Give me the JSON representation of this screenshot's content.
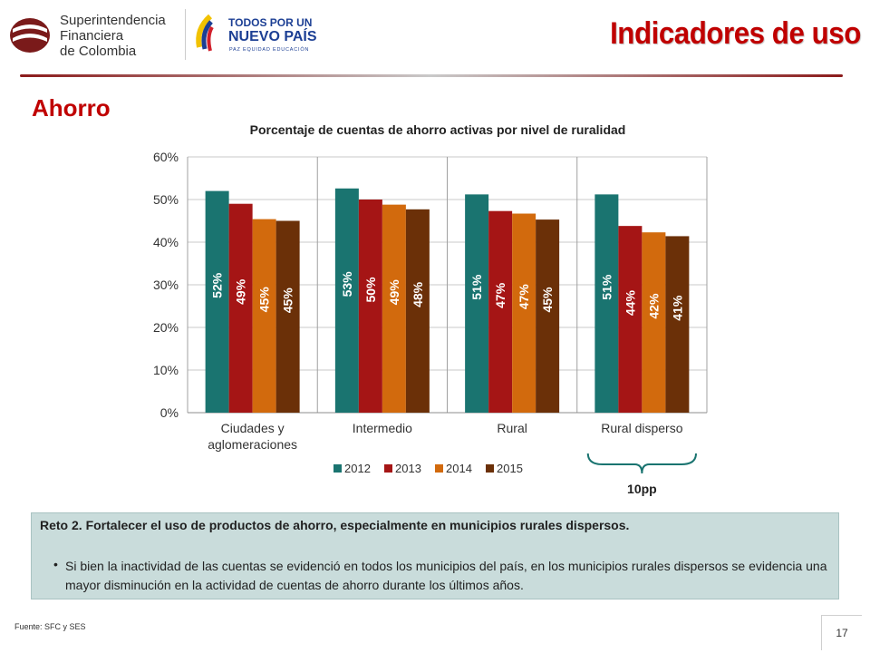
{
  "header": {
    "org_name": [
      "Superintendencia",
      "Financiera",
      "de Colombia"
    ],
    "gov_logo": [
      "TODOS POR UN",
      "NUEVO PAÍS",
      "PAZ  EQUIDAD  EDUCACIÓN"
    ],
    "title": "Indicadores de uso"
  },
  "section_title": "Ahorro",
  "chart_data": {
    "type": "bar",
    "title": "Porcentaje de cuentas de ahorro activas por nivel de ruralidad",
    "categories": [
      "Ciudades y aglomeraciones",
      "Intermedio",
      "Rural",
      "Rural disperso"
    ],
    "category_lines": [
      [
        "Ciudades y",
        "aglomeraciones"
      ],
      [
        "Intermedio"
      ],
      [
        "Rural"
      ],
      [
        "Rural disperso"
      ]
    ],
    "series": [
      {
        "name": "2012",
        "color": "#1a7470",
        "values": [
          52,
          52.6,
          51.2,
          51.2
        ],
        "labels": [
          "52%",
          "53%",
          "51%",
          "51%"
        ]
      },
      {
        "name": "2013",
        "color": "#a51515",
        "values": [
          49,
          50,
          47.3,
          43.8
        ],
        "labels": [
          "49%",
          "50%",
          "47%",
          "44%"
        ]
      },
      {
        "name": "2014",
        "color": "#d26a0d",
        "values": [
          45.4,
          48.8,
          46.7,
          42.3
        ],
        "labels": [
          "45%",
          "49%",
          "47%",
          "42%"
        ]
      },
      {
        "name": "2015",
        "color": "#6b3008",
        "values": [
          45,
          47.7,
          45.3,
          41.4
        ],
        "labels": [
          "45%",
          "48%",
          "45%",
          "41%"
        ]
      }
    ],
    "y_ticks": [
      "0%",
      "10%",
      "20%",
      "30%",
      "40%",
      "50%",
      "60%"
    ],
    "ylim": [
      0,
      60
    ],
    "grid": true,
    "legend_position": "bottom",
    "annotation": "10pp"
  },
  "callout": {
    "heading": "Reto 2. Fortalecer el uso de productos de ahorro, especialmente en municipios rurales dispersos.",
    "bullet": "•",
    "text": "Si bien la inactividad de las cuentas se evidenció en todos los municipios del país, en los municipios rurales dispersos se evidencia una mayor disminución en la actividad de cuentas de ahorro durante los últimos años."
  },
  "source": "Fuente: SFC y SES",
  "page_number": "17"
}
